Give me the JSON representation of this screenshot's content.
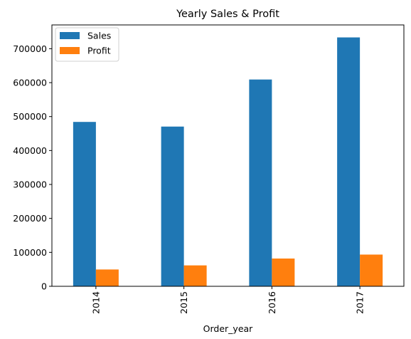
{
  "chart_data": {
    "type": "bar",
    "title": "Yearly Sales & Profit",
    "xlabel": "Order_year",
    "ylabel": "",
    "categories": [
      "2014",
      "2015",
      "2016",
      "2017"
    ],
    "series": [
      {
        "name": "Sales",
        "color": "#1f77b4",
        "values": [
          484247,
          470533,
          609206,
          733215
        ]
      },
      {
        "name": "Profit",
        "color": "#ff7f0e",
        "values": [
          49544,
          61619,
          81795,
          93439
        ]
      }
    ],
    "ylim": [
      0,
      770000
    ],
    "yticks": [
      0,
      100000,
      200000,
      300000,
      400000,
      500000,
      600000,
      700000
    ],
    "ytick_labels": [
      "0",
      "100000",
      "200000",
      "300000",
      "400000",
      "500000",
      "600000",
      "700000"
    ],
    "grid": false,
    "legend_position": "top-left"
  }
}
